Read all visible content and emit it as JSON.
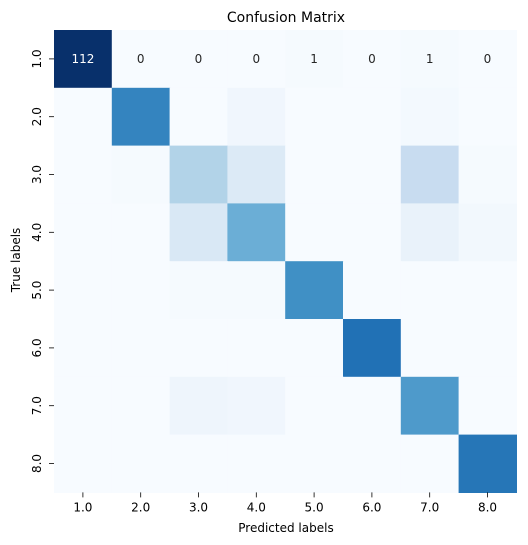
{
  "chart_data": {
    "type": "heatmap",
    "title": "Confusion Matrix",
    "xlabel": "Predicted labels",
    "ylabel": "True labels",
    "x_categories": [
      "1.0",
      "2.0",
      "3.0",
      "4.0",
      "5.0",
      "6.0",
      "7.0",
      "8.0"
    ],
    "y_categories": [
      "1.0",
      "2.0",
      "3.0",
      "4.0",
      "5.0",
      "6.0",
      "7.0",
      "8.0"
    ],
    "colormap": "Blues",
    "colorbar": false,
    "grid": false,
    "annotated_rows": [
      0
    ],
    "matrix": [
      [
        112,
        0,
        0,
        0,
        1,
        0,
        1,
        0
      ],
      [
        0,
        76,
        0,
        4,
        0,
        0,
        2,
        0
      ],
      [
        0,
        1,
        35,
        15,
        0,
        0,
        27,
        1
      ],
      [
        0,
        0,
        17,
        56,
        0,
        0,
        8,
        3
      ],
      [
        0,
        0,
        1,
        1,
        71,
        0,
        0,
        0
      ],
      [
        0,
        0,
        0,
        0,
        0,
        84,
        0,
        0
      ],
      [
        0,
        0,
        5,
        4,
        0,
        0,
        66,
        0
      ],
      [
        0,
        0,
        0,
        0,
        0,
        0,
        0,
        82
      ]
    ]
  }
}
